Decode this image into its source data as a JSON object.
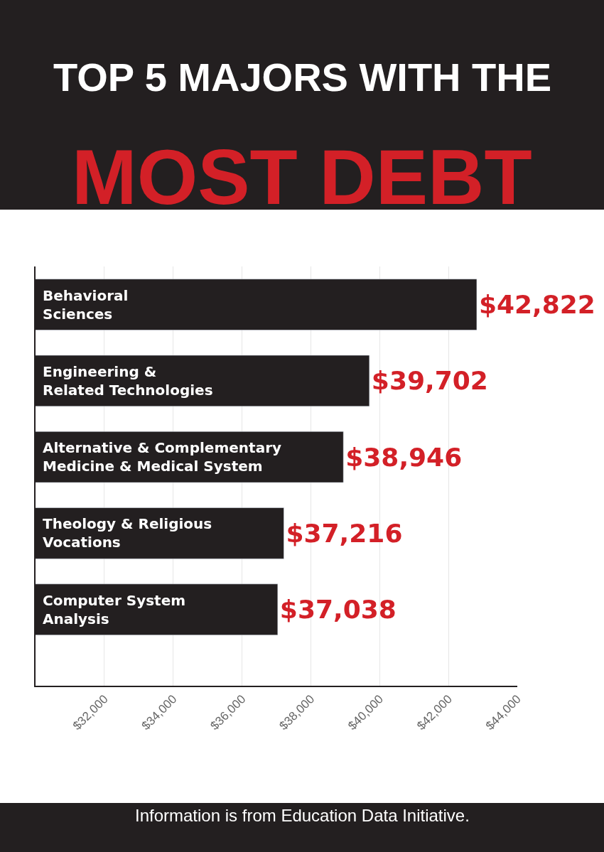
{
  "chart_data": {
    "type": "bar",
    "orientation": "horizontal",
    "title": "TOP 5 MAJORS WITH THE",
    "subtitle": "MOST DEBT",
    "categories": [
      "Behavioral\nSciences",
      "Engineering &\nRelated Technologies",
      "Alternative & Complementary\nMedicine & Medical System",
      "Theology & Religious\nVocations",
      "Computer System\nAnalysis"
    ],
    "values": [
      42822,
      39702,
      38946,
      37216,
      37038
    ],
    "value_labels": [
      "$42,822",
      "$39,702",
      "$38,946",
      "$37,216",
      "$37,038"
    ],
    "color": "#231f20",
    "xlim": [
      30000,
      44000
    ],
    "xticks": [
      {
        "value": 32000,
        "label": "$32,000"
      },
      {
        "value": 34000,
        "label": "$34,000"
      },
      {
        "value": 36000,
        "label": "$36,000"
      },
      {
        "value": 38000,
        "label": "$38,000"
      },
      {
        "value": 40000,
        "label": "$40,000"
      },
      {
        "value": 42000,
        "label": "$42,000"
      },
      {
        "value": 44000,
        "label": "$44,000"
      }
    ],
    "grid": "x",
    "annotations": [
      "Information is from Education Data Initiative."
    ]
  }
}
